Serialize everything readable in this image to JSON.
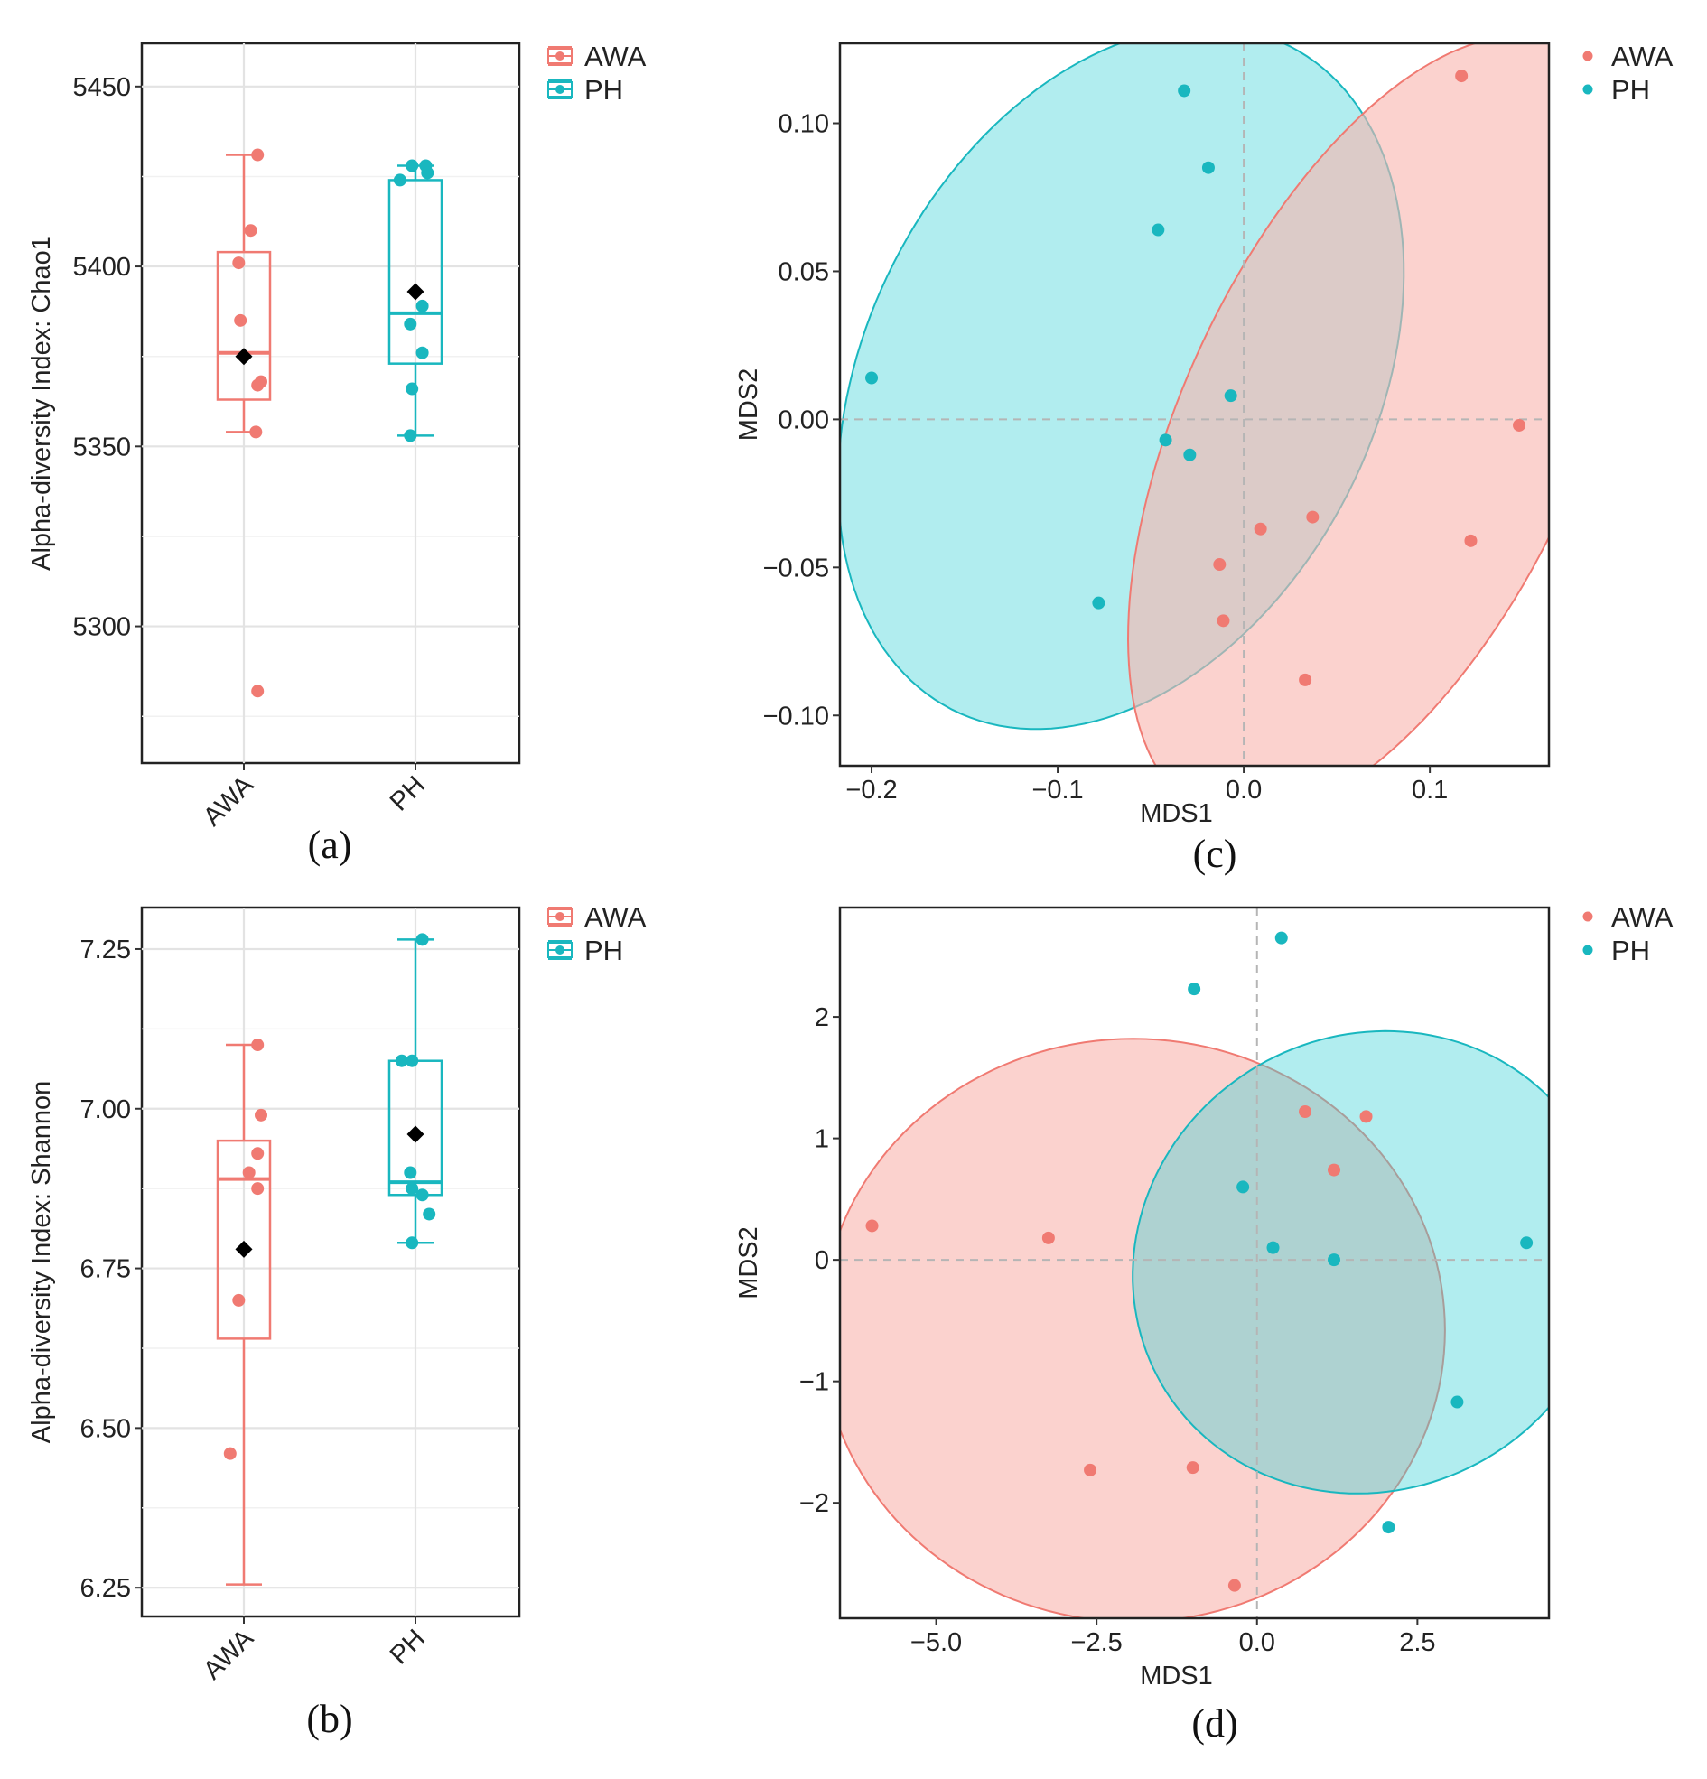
{
  "colors": {
    "AWA": "#F07A72",
    "PH": "#19B7BF",
    "mean": "#000000"
  },
  "chart_data": [
    {
      "id": "a",
      "type": "box",
      "panel_label": "(a)",
      "ylabel": "Alpha-diversity Index: Chao1",
      "xlabel": "",
      "categories": [
        "AWA",
        "PH"
      ],
      "yticks": [
        5300,
        5350,
        5400,
        5450
      ],
      "ylim": [
        5262,
        5462
      ],
      "legend": [
        "AWA",
        "PH"
      ],
      "legend_position": "top-right",
      "groups": [
        {
          "name": "AWA",
          "q1": 5363,
          "median": 5376,
          "q3": 5404,
          "whisker_low": 5354,
          "whisker_high": 5431,
          "mean": 5375,
          "points": [
            [
              0.08,
              5431
            ],
            [
              0.04,
              5410
            ],
            [
              -0.03,
              5401
            ],
            [
              -0.02,
              5385
            ],
            [
              0.08,
              5367
            ],
            [
              0.1,
              5368
            ],
            [
              0.07,
              5354
            ],
            [
              0.08,
              5282
            ]
          ]
        },
        {
          "name": "PH",
          "q1": 5373,
          "median": 5387,
          "q3": 5424,
          "whisker_low": 5353,
          "whisker_high": 5428,
          "mean": 5393,
          "points": [
            [
              -0.09,
              5424
            ],
            [
              -0.02,
              5428
            ],
            [
              0.06,
              5428
            ],
            [
              0.07,
              5426
            ],
            [
              0.04,
              5389
            ],
            [
              -0.03,
              5384
            ],
            [
              0.04,
              5376
            ],
            [
              -0.02,
              5366
            ],
            [
              -0.03,
              5353
            ]
          ]
        }
      ]
    },
    {
      "id": "b",
      "type": "box",
      "panel_label": "(b)",
      "ylabel": "Alpha-diversity Index: Shannon",
      "xlabel": "",
      "categories": [
        "AWA",
        "PH"
      ],
      "yticks": [
        6.25,
        6.5,
        6.75,
        7.0,
        7.25
      ],
      "ylim": [
        6.205,
        7.315
      ],
      "legend": [
        "AWA",
        "PH"
      ],
      "legend_position": "top-right",
      "groups": [
        {
          "name": "AWA",
          "q1": 6.64,
          "median": 6.89,
          "q3": 6.95,
          "whisker_low": 6.255,
          "whisker_high": 7.1,
          "mean": 6.78,
          "points": [
            [
              0.08,
              7.1
            ],
            [
              0.1,
              6.99
            ],
            [
              0.08,
              6.93
            ],
            [
              0.03,
              6.9
            ],
            [
              0.08,
              6.875
            ],
            [
              -0.03,
              6.7
            ],
            [
              -0.08,
              6.46
            ]
          ]
        },
        {
          "name": "PH",
          "q1": 6.865,
          "median": 6.885,
          "q3": 7.075,
          "whisker_low": 6.79,
          "whisker_high": 7.265,
          "mean": 6.96,
          "points": [
            [
              0.04,
              7.265
            ],
            [
              -0.08,
              7.075
            ],
            [
              -0.02,
              7.075
            ],
            [
              -0.03,
              6.9
            ],
            [
              -0.02,
              6.875
            ],
            [
              0.04,
              6.865
            ],
            [
              0.08,
              6.835
            ],
            [
              -0.02,
              6.79
            ]
          ]
        }
      ]
    },
    {
      "id": "c",
      "type": "scatter",
      "panel_label": "(c)",
      "xlabel": "MDS1",
      "ylabel": "MDS2",
      "xticks": [
        -0.2,
        -0.1,
        0.0,
        0.1
      ],
      "xtick_labels": [
        "−0.2",
        "−0.1",
        "0.0",
        "0.1"
      ],
      "yticks": [
        -0.1,
        -0.05,
        0.0,
        0.05,
        0.1
      ],
      "ytick_labels": [
        "−0.10",
        "−0.05",
        "0.00",
        "0.05",
        "0.10"
      ],
      "xlim": [
        -0.217,
        0.164
      ],
      "ylim": [
        -0.117,
        0.127
      ],
      "legend": [
        "AWA",
        "PH"
      ],
      "legend_position": "top-right",
      "ellipses": [
        {
          "group": "PH",
          "cx": -0.066,
          "cy": 0.014,
          "rx": 0.2,
          "ry": 0.086,
          "angle": 63
        },
        {
          "group": "AWA",
          "cx": 0.074,
          "cy": -0.003,
          "rx": 0.227,
          "ry": 0.067,
          "angle": 65
        }
      ],
      "series": [
        {
          "name": "AWA",
          "points": [
            [
              0.117,
              0.116
            ],
            [
              0.148,
              -0.002
            ],
            [
              0.037,
              -0.033
            ],
            [
              0.009,
              -0.037
            ],
            [
              0.122,
              -0.041
            ],
            [
              -0.013,
              -0.049
            ],
            [
              -0.011,
              -0.068
            ],
            [
              0.033,
              -0.088
            ]
          ]
        },
        {
          "name": "PH",
          "points": [
            [
              -0.032,
              0.111
            ],
            [
              -0.019,
              0.085
            ],
            [
              -0.046,
              0.064
            ],
            [
              -0.2,
              0.014
            ],
            [
              -0.007,
              0.008
            ],
            [
              -0.042,
              -0.007
            ],
            [
              -0.029,
              -0.012
            ],
            [
              -0.078,
              -0.062
            ]
          ]
        }
      ]
    },
    {
      "id": "d",
      "type": "scatter",
      "panel_label": "(d)",
      "xlabel": "MDS1",
      "ylabel": "MDS2",
      "xticks": [
        -5.0,
        -2.5,
        0.0,
        2.5
      ],
      "xtick_labels": [
        "−5.0",
        "−2.5",
        "0.0",
        "2.5"
      ],
      "yticks": [
        -2,
        -1,
        0,
        1,
        2
      ],
      "ytick_labels": [
        "−2",
        "−1",
        "0",
        "1",
        "2"
      ],
      "xlim": [
        -6.5,
        4.55
      ],
      "ylim": [
        -2.95,
        2.9
      ],
      "legend": [
        "AWA",
        "PH"
      ],
      "legend_position": "top-right",
      "ellipses": [
        {
          "group": "AWA",
          "cx": -1.93,
          "cy": -0.58,
          "rx": 4.86,
          "ry": 2.4,
          "angle": 0
        },
        {
          "group": "PH",
          "cx": 1.79,
          "cy": -0.02,
          "rx": 3.54,
          "ry": 2.0,
          "angle": -60
        }
      ],
      "series": [
        {
          "name": "AWA",
          "points": [
            [
              -6.0,
              0.28
            ],
            [
              -3.25,
              0.18
            ],
            [
              0.75,
              1.22
            ],
            [
              1.7,
              1.18
            ],
            [
              1.2,
              0.74
            ],
            [
              -2.6,
              -1.73
            ],
            [
              -1.0,
              -1.71
            ],
            [
              -0.35,
              -2.68
            ]
          ]
        },
        {
          "name": "PH",
          "points": [
            [
              0.38,
              2.65
            ],
            [
              -0.98,
              2.23
            ],
            [
              -0.22,
              0.6
            ],
            [
              0.25,
              0.1
            ],
            [
              1.2,
              0.0
            ],
            [
              4.2,
              0.14
            ],
            [
              3.12,
              -1.17
            ],
            [
              2.05,
              -2.2
            ]
          ]
        }
      ]
    }
  ]
}
